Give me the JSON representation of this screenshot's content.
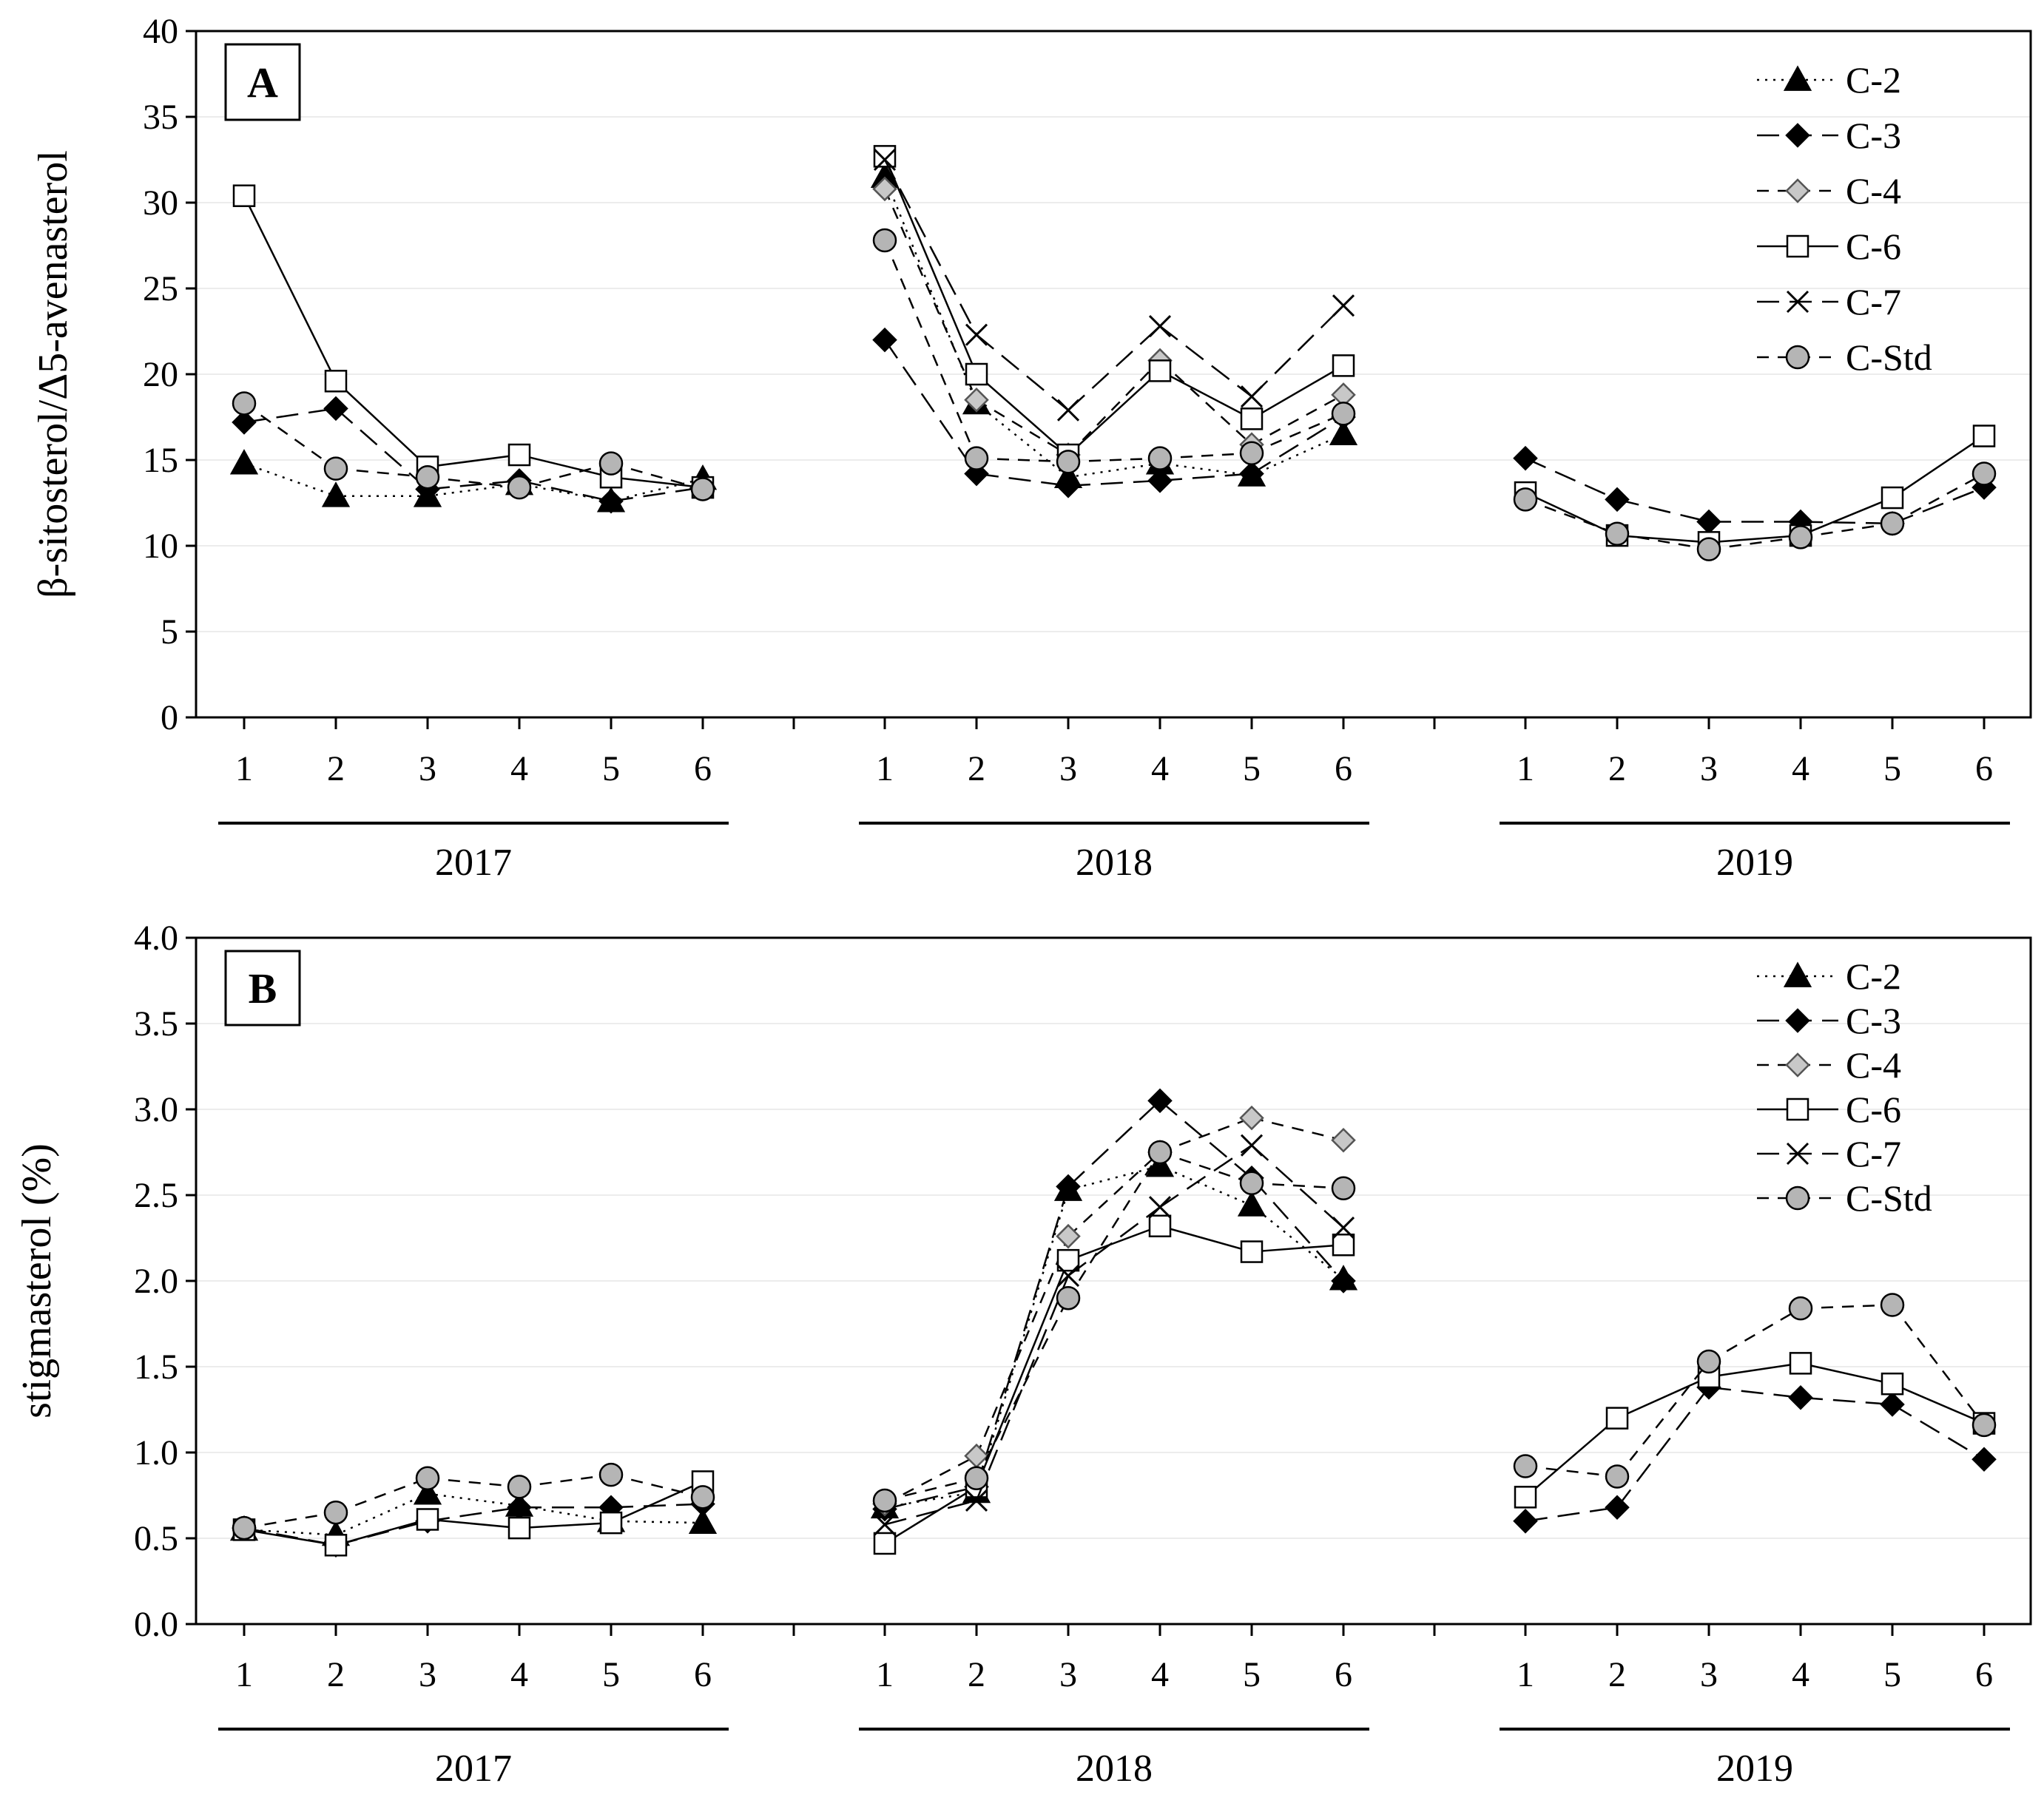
{
  "chart_data": [
    {
      "type": "line",
      "panel": "A",
      "ylabel": "β-sitosterol/Δ5-avenasterol",
      "ylim": [
        0,
        40
      ],
      "yticks": [
        "0",
        "5",
        "10",
        "15",
        "20",
        "25",
        "30",
        "35",
        "40"
      ],
      "groups": [
        {
          "label": "2017",
          "categories": [
            "1",
            "2",
            "3",
            "4",
            "5",
            "6"
          ]
        },
        {
          "label": "2018",
          "categories": [
            "1",
            "2",
            "3",
            "4",
            "5",
            "6"
          ]
        },
        {
          "label": "2019",
          "categories": [
            "1",
            "2",
            "3",
            "4",
            "5",
            "6"
          ]
        }
      ],
      "series": [
        {
          "name": "C-2",
          "marker": "triangle-filled",
          "line": "dotted",
          "values": [
            [
              14.8,
              12.9,
              12.9,
              13.6,
              12.6,
              13.9
            ],
            [
              31.5,
              18.3,
              14.0,
              14.8,
              14.1,
              16.5
            ],
            [
              null,
              null,
              null,
              null,
              null,
              null
            ]
          ]
        },
        {
          "name": "C-3",
          "marker": "diamond-filled",
          "line": "long-dash",
          "values": [
            [
              17.2,
              18.0,
              13.3,
              13.8,
              12.6,
              13.4
            ],
            [
              22.0,
              14.2,
              13.5,
              13.8,
              14.2,
              17.5
            ],
            [
              15.1,
              12.7,
              11.4,
              11.4,
              11.3,
              13.4
            ]
          ]
        },
        {
          "name": "C-4",
          "marker": "diamond-gray",
          "line": "dashed",
          "values": [
            [
              null,
              null,
              null,
              null,
              null,
              null
            ],
            [
              30.8,
              18.5,
              15.3,
              20.8,
              15.9,
              18.8
            ],
            [
              null,
              null,
              null,
              null,
              null,
              null
            ]
          ]
        },
        {
          "name": "C-6",
          "marker": "square-open",
          "line": "solid",
          "values": [
            [
              30.4,
              19.6,
              14.6,
              15.3,
              14.0,
              13.4
            ],
            [
              32.7,
              20.0,
              15.3,
              20.2,
              17.4,
              20.5
            ],
            [
              13.1,
              10.6,
              10.2,
              10.6,
              12.8,
              16.4
            ]
          ]
        },
        {
          "name": "C-7",
          "marker": "cross",
          "line": "long-dash",
          "values": [
            [
              null,
              null,
              null,
              null,
              null,
              null
            ],
            [
              32.5,
              22.3,
              17.9,
              22.8,
              18.7,
              24.0
            ],
            [
              null,
              null,
              null,
              null,
              null,
              null
            ]
          ]
        },
        {
          "name": "C-Std",
          "marker": "circle-gray",
          "line": "dashed",
          "values": [
            [
              18.3,
              14.5,
              14.0,
              13.4,
              14.8,
              13.3
            ],
            [
              27.8,
              15.1,
              14.9,
              15.1,
              15.4,
              17.7
            ],
            [
              12.7,
              10.7,
              9.8,
              10.5,
              11.3,
              14.2
            ]
          ]
        }
      ]
    },
    {
      "type": "line",
      "panel": "B",
      "ylabel": "stigmasterol (%)",
      "ylim": [
        0,
        4
      ],
      "yticks": [
        "0.0",
        "0.5",
        "1.0",
        "1.5",
        "2.0",
        "2.5",
        "3.0",
        "3.5",
        "4.0"
      ],
      "groups": [
        {
          "label": "2017",
          "categories": [
            "1",
            "2",
            "3",
            "4",
            "5",
            "6"
          ]
        },
        {
          "label": "2018",
          "categories": [
            "1",
            "2",
            "3",
            "4",
            "5",
            "6"
          ]
        },
        {
          "label": "2019",
          "categories": [
            "1",
            "2",
            "3",
            "4",
            "5",
            "6"
          ]
        }
      ],
      "series": [
        {
          "name": "C-2",
          "marker": "triangle-filled",
          "line": "dotted",
          "values": [
            [
              0.55,
              0.52,
              0.76,
              0.69,
              0.6,
              0.59
            ],
            [
              0.68,
              0.77,
              2.53,
              2.67,
              2.44,
              2.01
            ],
            [
              null,
              null,
              null,
              null,
              null,
              null
            ]
          ]
        },
        {
          "name": "C-3",
          "marker": "diamond-filled",
          "line": "long-dash",
          "values": [
            [
              0.56,
              0.46,
              0.6,
              0.68,
              0.68,
              0.7
            ],
            [
              0.67,
              0.8,
              2.55,
              3.05,
              2.6,
              2.0
            ],
            [
              0.6,
              0.68,
              1.38,
              1.32,
              1.28,
              0.96
            ]
          ]
        },
        {
          "name": "C-4",
          "marker": "diamond-gray",
          "line": "dashed",
          "values": [
            [
              null,
              null,
              null,
              null,
              null,
              null
            ],
            [
              0.7,
              0.98,
              2.26,
              2.75,
              2.95,
              2.82
            ],
            [
              null,
              null,
              null,
              null,
              null,
              null
            ]
          ]
        },
        {
          "name": "C-6",
          "marker": "square-open",
          "line": "solid",
          "values": [
            [
              0.55,
              0.46,
              0.61,
              0.56,
              0.59,
              0.83
            ],
            [
              0.47,
              0.8,
              2.12,
              2.32,
              2.17,
              2.21
            ],
            [
              0.74,
              1.2,
              1.44,
              1.52,
              1.4,
              1.17
            ]
          ]
        },
        {
          "name": "C-7",
          "marker": "cross",
          "line": "long-dash",
          "values": [
            [
              null,
              null,
              null,
              null,
              null,
              null
            ],
            [
              0.58,
              0.72,
              2.03,
              2.43,
              2.79,
              2.31
            ],
            [
              null,
              null,
              null,
              null,
              null,
              null
            ]
          ]
        },
        {
          "name": "C-Std",
          "marker": "circle-gray",
          "line": "dashed",
          "values": [
            [
              0.56,
              0.65,
              0.85,
              0.8,
              0.87,
              0.74
            ],
            [
              0.72,
              0.85,
              1.9,
              2.75,
              2.57,
              2.54
            ],
            [
              0.92,
              0.86,
              1.53,
              1.84,
              1.86,
              1.16
            ]
          ]
        }
      ]
    }
  ]
}
